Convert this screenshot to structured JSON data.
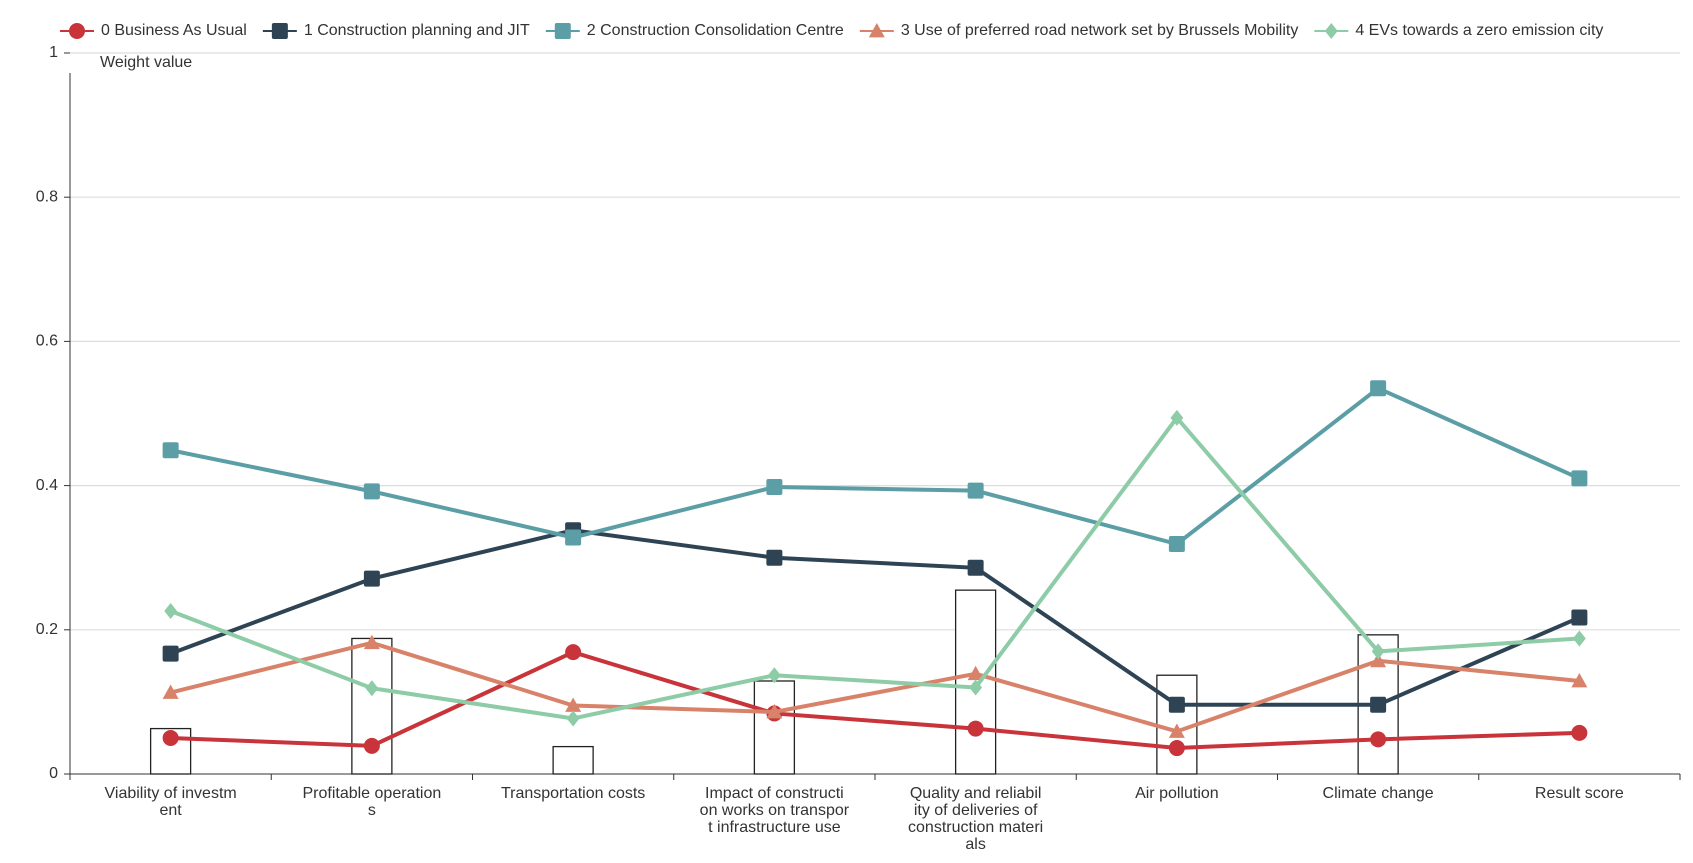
{
  "chart_data": {
    "type": "line",
    "y_label": "Weight value",
    "categories": [
      "Viability of investment",
      "Profitable operations",
      "Transportation costs",
      "Impact of construction works on transport infrastructure use",
      "Quality and reliability of deliveries of construction materials",
      "Air pollution",
      "Climate change",
      "Result score"
    ],
    "ylim": [
      0,
      1
    ],
    "yticks": [
      0,
      0.2,
      0.4,
      0.6,
      0.8,
      1
    ],
    "grid": true,
    "bars": {
      "color": "#ffffff",
      "stroke": "#222222",
      "values": [
        0.063,
        0.188,
        0.038,
        0.129,
        0.255,
        0.137,
        0.193,
        null
      ]
    },
    "series": [
      {
        "name": "0 Business As Usual",
        "color": "#c8343a",
        "marker": "circle",
        "values": [
          0.05,
          0.039,
          0.169,
          0.084,
          0.063,
          0.036,
          0.048,
          0.057
        ]
      },
      {
        "name": "1 Construction planning and JIT",
        "color": "#2e4455",
        "marker": "square",
        "values": [
          0.167,
          0.271,
          0.338,
          0.3,
          0.286,
          0.096,
          0.096,
          0.217
        ]
      },
      {
        "name": "2 Construction Consolidation Centre",
        "color": "#5b9ea6",
        "marker": "square",
        "values": [
          0.449,
          0.392,
          0.328,
          0.398,
          0.393,
          0.319,
          0.535,
          0.41
        ]
      },
      {
        "name": "3 Use of preferred road network set by Brussels Mobility",
        "color": "#d9826a",
        "marker": "triangle",
        "values": [
          0.113,
          0.182,
          0.095,
          0.086,
          0.139,
          0.059,
          0.157,
          0.129
        ]
      },
      {
        "name": "4 EVs towards a zero emission city",
        "color": "#8ecba7",
        "marker": "diamond",
        "values": [
          0.226,
          0.119,
          0.077,
          0.137,
          0.12,
          0.494,
          0.17,
          0.188
        ]
      }
    ]
  }
}
